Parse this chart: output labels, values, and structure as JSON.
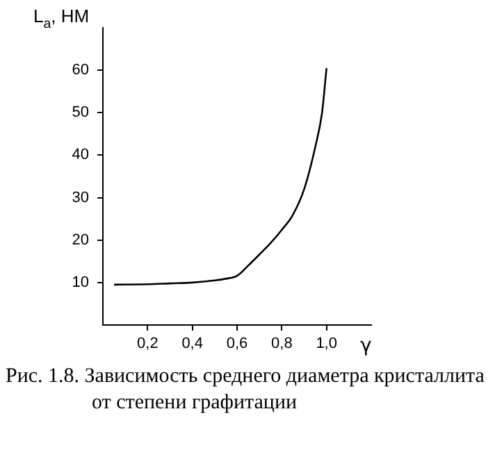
{
  "chart_data": {
    "type": "line",
    "title": "Рис. 1.8. Зависимость среднего диаметра кристаллита от степени графитации",
    "xlabel": "γ",
    "ylabel": "L$_{a}$, НМ",
    "series": [
      {
        "color": "#000000",
        "x": [
          0.05,
          0.2,
          0.3,
          0.4,
          0.5,
          0.55,
          0.6,
          0.65,
          0.7,
          0.75,
          0.8,
          0.85,
          0.9,
          0.95,
          0.98,
          1.0
        ],
        "values": [
          9.5,
          9.6,
          9.8,
          10,
          10.5,
          10.9,
          11.6,
          14,
          16.6,
          19.3,
          22.4,
          26,
          32,
          42,
          50,
          60.5
        ]
      }
    ],
    "xlim": [
      0,
      1.2
    ],
    "ylim": [
      0,
      70
    ],
    "xticks": [
      {
        "value": 0.2,
        "label": "0,2"
      },
      {
        "value": 0.4,
        "label": "0,4"
      },
      {
        "value": 0.6,
        "label": "0,6"
      },
      {
        "value": 0.8,
        "label": "0,8"
      },
      {
        "value": 1.0,
        "label": "1,0"
      }
    ],
    "yticks": [
      10,
      20,
      30,
      40,
      50,
      60
    ],
    "grid": false,
    "legend": false,
    "marker": "none",
    "line_style": "solid"
  }
}
